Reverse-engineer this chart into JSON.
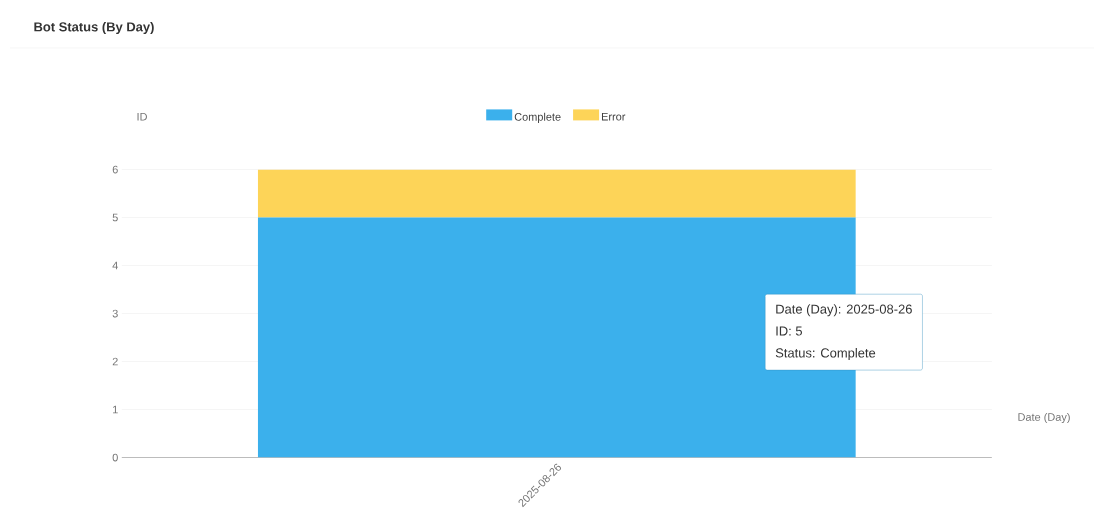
{
  "chart_data": {
    "type": "bar",
    "title": "Bot Status (By Day)",
    "xlabel": "Date (Day)",
    "ylabel": "ID",
    "stacked": true,
    "categories": [
      "2025-08-26"
    ],
    "series": [
      {
        "name": "Complete",
        "color": "#3bb0ec",
        "values": [
          5
        ]
      },
      {
        "name": "Error",
        "color": "#fdd458",
        "values": [
          1
        ]
      }
    ],
    "ylim": [
      0,
      6
    ],
    "yticks": [
      0,
      1,
      2,
      3,
      4,
      5,
      6
    ],
    "grid": "y",
    "legend": "top",
    "annotations": [
      "Date (Day): 2025-08-26",
      "ID: 5",
      "Status: Complete"
    ]
  }
}
